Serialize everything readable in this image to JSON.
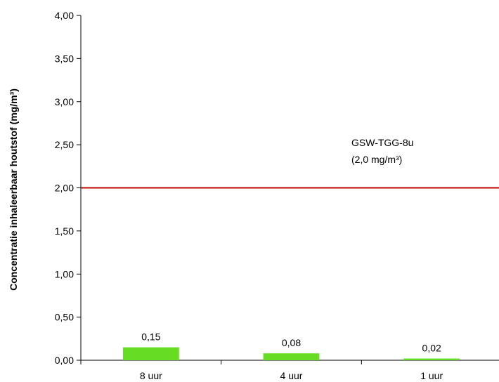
{
  "chart_data": {
    "type": "bar",
    "title": "",
    "xlabel": "",
    "ylabel": "Concentratie inhaleerbaar  houtstof (mg/m³)",
    "categories": [
      "8 uur",
      "4 uur",
      "1 uur"
    ],
    "values": [
      0.15,
      0.08,
      0.02
    ],
    "value_labels": [
      "0,15",
      "0,08",
      "0,02"
    ],
    "ylim": [
      0,
      4
    ],
    "yticks": [
      0,
      0.5,
      1,
      1.5,
      2,
      2.5,
      3,
      3.5,
      4
    ],
    "ytick_labels": [
      "0,00",
      "0,50",
      "1,00",
      "1,50",
      "2,00",
      "2,50",
      "3,00",
      "3,50",
      "4,00"
    ],
    "grid": false,
    "legend": "none",
    "bar_color": "#66dd22",
    "reference_line": {
      "value": 2.0,
      "color": "#c00000",
      "label_line1": "GSW-TGG-8u",
      "label_line2": "(2,0 mg/m³)"
    }
  }
}
